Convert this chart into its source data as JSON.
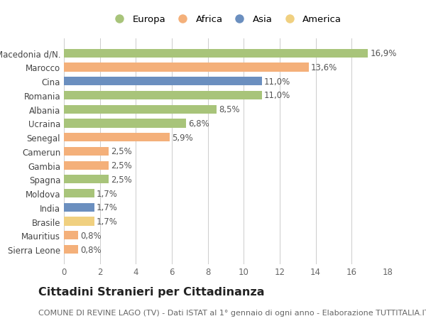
{
  "categories": [
    "Macedonia d/N.",
    "Marocco",
    "Cina",
    "Romania",
    "Albania",
    "Ucraina",
    "Senegal",
    "Camerun",
    "Gambia",
    "Spagna",
    "Moldova",
    "India",
    "Brasile",
    "Mauritius",
    "Sierra Leone"
  ],
  "values": [
    16.9,
    13.6,
    11.0,
    11.0,
    8.5,
    6.8,
    5.9,
    2.5,
    2.5,
    2.5,
    1.7,
    1.7,
    1.7,
    0.8,
    0.8
  ],
  "labels": [
    "16,9%",
    "13,6%",
    "11,0%",
    "11,0%",
    "8,5%",
    "6,8%",
    "5,9%",
    "2,5%",
    "2,5%",
    "2,5%",
    "1,7%",
    "1,7%",
    "1,7%",
    "0,8%",
    "0,8%"
  ],
  "colors": [
    "#A8C47A",
    "#F4B07A",
    "#6B8FBF",
    "#A8C47A",
    "#A8C47A",
    "#A8C47A",
    "#F4B07A",
    "#F4B07A",
    "#F4B07A",
    "#A8C47A",
    "#A8C47A",
    "#6B8FBF",
    "#F0D080",
    "#F4B07A",
    "#F4B07A"
  ],
  "legend_labels": [
    "Europa",
    "Africa",
    "Asia",
    "America"
  ],
  "legend_colors": [
    "#A8C47A",
    "#F4B07A",
    "#6B8FBF",
    "#F0D080"
  ],
  "xlim": [
    0,
    18
  ],
  "xticks": [
    0,
    2,
    4,
    6,
    8,
    10,
    12,
    14,
    16,
    18
  ],
  "title": "Cittadini Stranieri per Cittadinanza",
  "subtitle": "COMUNE DI REVINE LAGO (TV) - Dati ISTAT al 1° gennaio di ogni anno - Elaborazione TUTTITALIA.IT",
  "bg_color": "#ffffff",
  "grid_color": "#cccccc",
  "bar_height": 0.62,
  "label_fontsize": 8.5,
  "ytick_fontsize": 8.5,
  "xtick_fontsize": 8.5,
  "title_fontsize": 11.5,
  "subtitle_fontsize": 8
}
